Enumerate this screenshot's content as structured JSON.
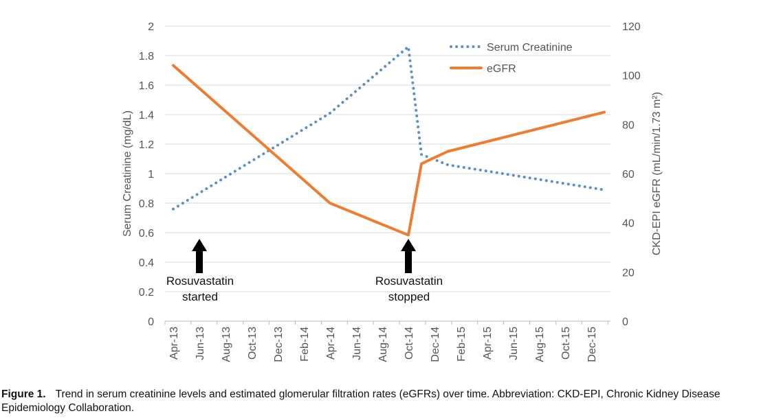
{
  "chart_data": {
    "type": "line",
    "ylabel_left": "Serum Creatinine (mg/dL)",
    "ylabel_right": "CKD-EPI eGFR (mL/min/1.73 m²)",
    "ylim_left": [
      0,
      2
    ],
    "ylim_right": [
      0,
      120
    ],
    "yticks_left": [
      "0",
      "0.2",
      "0.4",
      "0.6",
      "0.8",
      "1",
      "1.2",
      "1.4",
      "1.6",
      "1.8",
      "2"
    ],
    "yticks_right": [
      "0",
      "20",
      "40",
      "60",
      "80",
      "100",
      "120"
    ],
    "xticks": [
      "Apr-13",
      "Jun-13",
      "Aug-13",
      "Oct-13",
      "Dec-13",
      "Feb-14",
      "Apr-14",
      "Jun-14",
      "Aug-14",
      "Oct-14",
      "Dec-14",
      "Feb-15",
      "Apr-15",
      "Jun-15",
      "Aug-15",
      "Oct-15",
      "Dec-15"
    ],
    "grid": true,
    "legend_placement": "top-right",
    "series": [
      {
        "name": "Serum Creatinine",
        "axis": "left",
        "style": "dotted",
        "color": "#5b8fc7",
        "x": [
          "Apr-13",
          "Apr-14",
          "Oct-14",
          "Nov-14",
          "Jan-15",
          "Jan-16"
        ],
        "values": [
          0.76,
          1.41,
          1.86,
          1.13,
          1.06,
          0.89
        ]
      },
      {
        "name": "eGFR",
        "axis": "right",
        "style": "solid",
        "color": "#ed7d31",
        "x": [
          "Apr-13",
          "Apr-14",
          "Oct-14",
          "Nov-14",
          "Jan-15",
          "Jan-16"
        ],
        "values": [
          104,
          48,
          35,
          64,
          69,
          85
        ]
      }
    ],
    "annotations": [
      {
        "x": "Jun-13",
        "line1": "Rosuvastatin",
        "line2": "started"
      },
      {
        "x": "Oct-14",
        "line1": "Rosuvastatin",
        "line2": "stopped"
      }
    ]
  },
  "caption": {
    "label": "Figure 1.",
    "text": "Trend in serum creatinine levels and estimated glomerular filtration rates (eGFRs) over time. Abbreviation: CKD-EPI, Chronic Kidney Disease Epidemiology Collaboration."
  }
}
